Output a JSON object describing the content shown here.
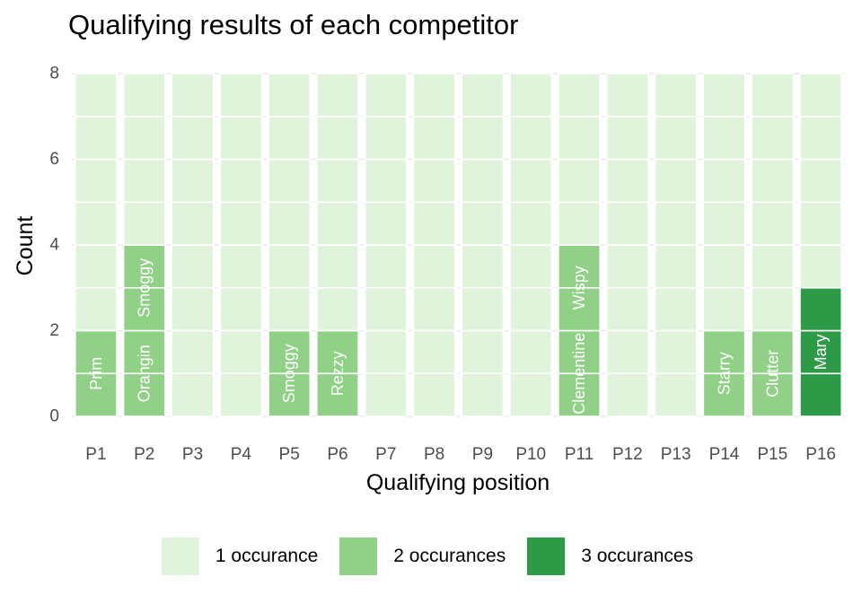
{
  "chart_data": {
    "type": "bar",
    "title": "Qualifying results of each competitor",
    "xlabel": "Qualifying position",
    "ylabel": "Count",
    "categories": [
      "P1",
      "P2",
      "P3",
      "P4",
      "P5",
      "P6",
      "P7",
      "P8",
      "P9",
      "P10",
      "P11",
      "P12",
      "P13",
      "P14",
      "P15",
      "P16"
    ],
    "ylim": [
      0,
      8
    ],
    "yticks": [
      0,
      2,
      4,
      6,
      8
    ],
    "grid": true,
    "legend_position": "bottom",
    "legend_title": "",
    "fill_levels": [
      {
        "label": "1 occurance",
        "color": "#e0f3db"
      },
      {
        "label": "2 occurances",
        "color": "#91d187"
      },
      {
        "label": "3 occurances",
        "color": "#2d9a48"
      }
    ],
    "bars": [
      {
        "category": "P1",
        "segments": [
          {
            "name": "Prim",
            "count": 2,
            "occurrences": 2
          },
          {
            "name": "",
            "count": 6,
            "occurrences": 1
          }
        ]
      },
      {
        "category": "P2",
        "segments": [
          {
            "name": "Orangin",
            "count": 2,
            "occurrences": 2
          },
          {
            "name": "Smoggy",
            "count": 2,
            "occurrences": 2
          },
          {
            "name": "",
            "count": 4,
            "occurrences": 1
          }
        ]
      },
      {
        "category": "P3",
        "segments": [
          {
            "name": "",
            "count": 8,
            "occurrences": 1
          }
        ]
      },
      {
        "category": "P4",
        "segments": [
          {
            "name": "",
            "count": 8,
            "occurrences": 1
          }
        ]
      },
      {
        "category": "P5",
        "segments": [
          {
            "name": "Smoggy",
            "count": 2,
            "occurrences": 2
          },
          {
            "name": "",
            "count": 6,
            "occurrences": 1
          }
        ]
      },
      {
        "category": "P6",
        "segments": [
          {
            "name": "Rezzy",
            "count": 2,
            "occurrences": 2
          },
          {
            "name": "",
            "count": 6,
            "occurrences": 1
          }
        ]
      },
      {
        "category": "P7",
        "segments": [
          {
            "name": "",
            "count": 8,
            "occurrences": 1
          }
        ]
      },
      {
        "category": "P8",
        "segments": [
          {
            "name": "",
            "count": 8,
            "occurrences": 1
          }
        ]
      },
      {
        "category": "P9",
        "segments": [
          {
            "name": "",
            "count": 8,
            "occurrences": 1
          }
        ]
      },
      {
        "category": "P10",
        "segments": [
          {
            "name": "",
            "count": 8,
            "occurrences": 1
          }
        ]
      },
      {
        "category": "P11",
        "segments": [
          {
            "name": "Clementine",
            "count": 2,
            "occurrences": 2
          },
          {
            "name": "Wispy",
            "count": 2,
            "occurrences": 2
          },
          {
            "name": "",
            "count": 4,
            "occurrences": 1
          }
        ]
      },
      {
        "category": "P12",
        "segments": [
          {
            "name": "",
            "count": 8,
            "occurrences": 1
          }
        ]
      },
      {
        "category": "P13",
        "segments": [
          {
            "name": "",
            "count": 8,
            "occurrences": 1
          }
        ]
      },
      {
        "category": "P14",
        "segments": [
          {
            "name": "Starry",
            "count": 2,
            "occurrences": 2
          },
          {
            "name": "",
            "count": 6,
            "occurrences": 1
          }
        ]
      },
      {
        "category": "P15",
        "segments": [
          {
            "name": "Clutter",
            "count": 2,
            "occurrences": 2
          },
          {
            "name": "",
            "count": 6,
            "occurrences": 1
          }
        ]
      },
      {
        "category": "P16",
        "segments": [
          {
            "name": "Mary",
            "count": 3,
            "occurrences": 3
          },
          {
            "name": "",
            "count": 5,
            "occurrences": 1
          }
        ]
      }
    ]
  }
}
